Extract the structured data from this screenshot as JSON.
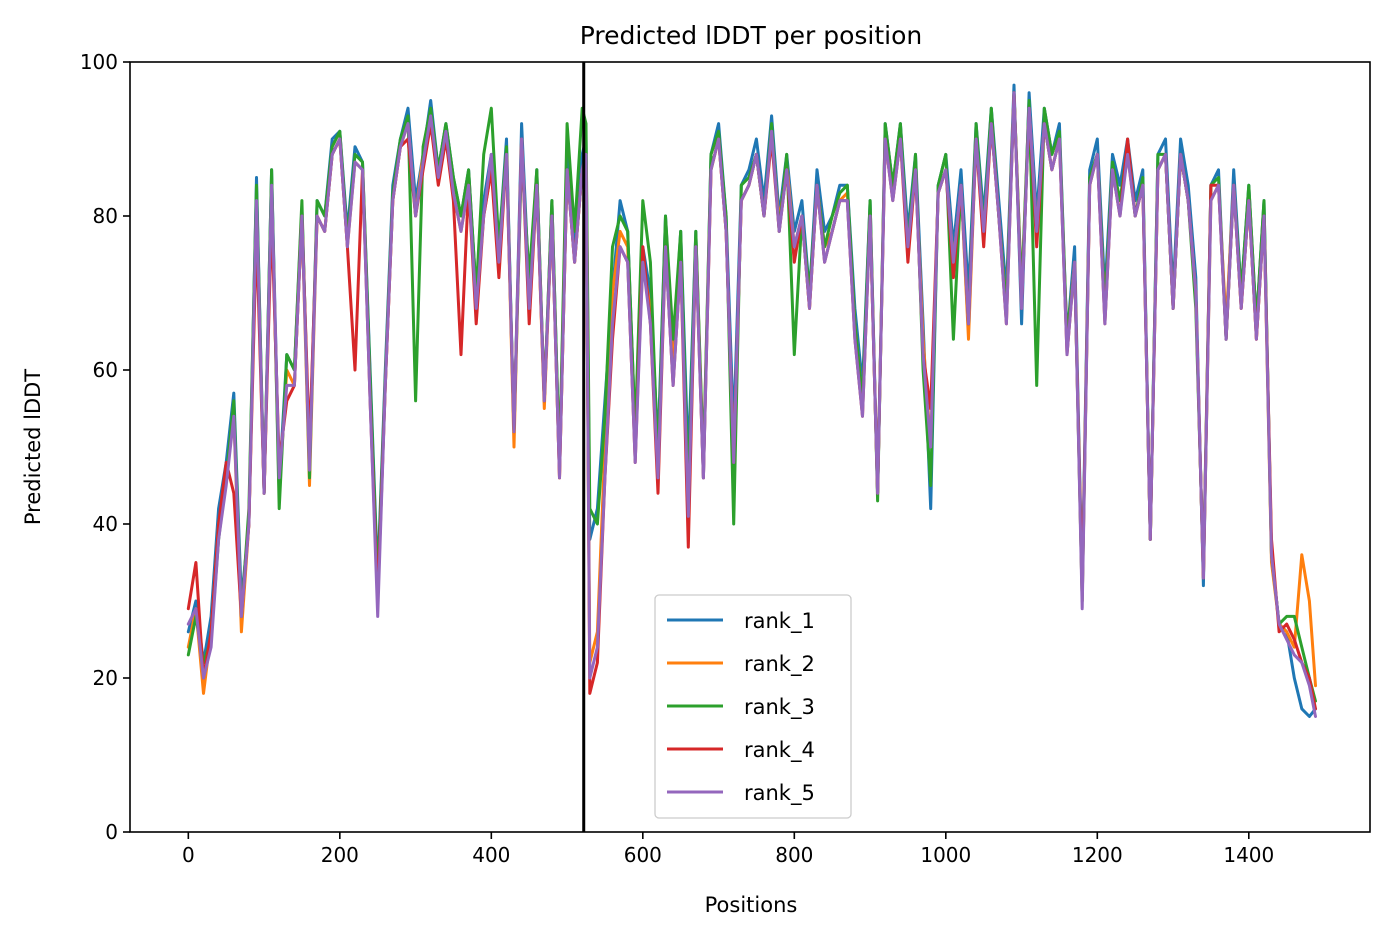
{
  "chart_data": {
    "type": "line",
    "title": "Predicted lDDT per position",
    "xlabel": "Positions",
    "ylabel": "Predicted lDDT",
    "xlim": [
      -77,
      1560
    ],
    "ylim": [
      0,
      100
    ],
    "xticks": [
      0,
      200,
      400,
      600,
      800,
      1000,
      1200,
      1400
    ],
    "yticks": [
      0,
      20,
      40,
      60,
      80,
      100
    ],
    "grid": false,
    "legend_position": "lower center",
    "vline_x": 522,
    "colors": [
      "#1f77b4",
      "#ff7f0e",
      "#2ca02c",
      "#d62728",
      "#9467bd"
    ],
    "x": [
      0,
      10,
      20,
      30,
      40,
      50,
      60,
      70,
      80,
      90,
      100,
      110,
      120,
      130,
      140,
      150,
      160,
      170,
      180,
      190,
      200,
      210,
      220,
      230,
      240,
      250,
      260,
      270,
      280,
      290,
      300,
      310,
      320,
      330,
      340,
      350,
      360,
      370,
      380,
      390,
      400,
      410,
      420,
      430,
      440,
      450,
      460,
      470,
      480,
      490,
      500,
      510,
      520,
      525,
      530,
      540,
      550,
      560,
      570,
      580,
      590,
      600,
      610,
      620,
      630,
      640,
      650,
      660,
      670,
      680,
      690,
      700,
      710,
      720,
      730,
      740,
      750,
      760,
      770,
      780,
      790,
      800,
      810,
      820,
      830,
      840,
      850,
      860,
      870,
      880,
      890,
      900,
      910,
      920,
      930,
      940,
      950,
      960,
      970,
      980,
      990,
      1000,
      1010,
      1020,
      1030,
      1040,
      1050,
      1060,
      1070,
      1080,
      1090,
      1100,
      1110,
      1120,
      1130,
      1140,
      1150,
      1160,
      1170,
      1180,
      1190,
      1200,
      1210,
      1220,
      1230,
      1240,
      1250,
      1260,
      1270,
      1280,
      1290,
      1300,
      1310,
      1320,
      1330,
      1340,
      1350,
      1360,
      1370,
      1380,
      1390,
      1400,
      1410,
      1420,
      1430,
      1440,
      1450,
      1460,
      1470,
      1480,
      1488
    ],
    "series": [
      {
        "name": "rank_1",
        "values": [
          26,
          30,
          22,
          28,
          42,
          48,
          57,
          30,
          40,
          85,
          44,
          86,
          45,
          62,
          60,
          81,
          48,
          82,
          80,
          90,
          91,
          78,
          89,
          87,
          60,
          33,
          60,
          84,
          90,
          94,
          82,
          88,
          95,
          86,
          92,
          85,
          80,
          86,
          70,
          82,
          88,
          76,
          90,
          52,
          92,
          70,
          86,
          56,
          82,
          48,
          88,
          76,
          88,
          90,
          38,
          42,
          56,
          70,
          82,
          78,
          52,
          76,
          70,
          50,
          80,
          62,
          78,
          48,
          78,
          46,
          88,
          92,
          80,
          52,
          84,
          86,
          90,
          82,
          93,
          80,
          88,
          78,
          82,
          70,
          86,
          78,
          80,
          84,
          84,
          68,
          58,
          82,
          44,
          92,
          84,
          92,
          78,
          88,
          66,
          42,
          84,
          88,
          76,
          86,
          70,
          92,
          80,
          94,
          82,
          70,
          97,
          66,
          96,
          80,
          94,
          88,
          92,
          64,
          76,
          32,
          86,
          90,
          70,
          88,
          84,
          90,
          82,
          86,
          38,
          88,
          90,
          70,
          90,
          84,
          72,
          32,
          84,
          86,
          64,
          86,
          70,
          84,
          66,
          82,
          36,
          27,
          26,
          20,
          16,
          15,
          16
        ]
      },
      {
        "name": "rank_2",
        "values": [
          24,
          29,
          18,
          26,
          40,
          46,
          54,
          26,
          40,
          82,
          44,
          84,
          44,
          60,
          58,
          80,
          45,
          80,
          78,
          88,
          90,
          76,
          87,
          86,
          58,
          30,
          58,
          82,
          89,
          92,
          80,
          88,
          93,
          85,
          90,
          83,
          78,
          84,
          68,
          80,
          86,
          74,
          88,
          50,
          90,
          68,
          84,
          55,
          80,
          46,
          86,
          74,
          86,
          88,
          22,
          26,
          50,
          70,
          78,
          76,
          50,
          74,
          68,
          48,
          78,
          60,
          76,
          40,
          77,
          48,
          86,
          90,
          78,
          48,
          82,
          84,
          88,
          80,
          91,
          79,
          87,
          76,
          80,
          68,
          84,
          76,
          78,
          82,
          83,
          66,
          56,
          80,
          44,
          91,
          83,
          90,
          76,
          86,
          64,
          50,
          83,
          86,
          74,
          84,
          64,
          90,
          78,
          92,
          80,
          68,
          96,
          70,
          94,
          78,
          92,
          86,
          90,
          64,
          74,
          30,
          84,
          88,
          68,
          86,
          82,
          88,
          80,
          84,
          38,
          86,
          88,
          68,
          88,
          82,
          70,
          33,
          82,
          84,
          66,
          84,
          68,
          82,
          64,
          80,
          35,
          27,
          26,
          24,
          36,
          30,
          19
        ]
      },
      {
        "name": "rank_3",
        "values": [
          23,
          28,
          22,
          25,
          38,
          46,
          56,
          28,
          42,
          84,
          44,
          86,
          42,
          62,
          60,
          82,
          46,
          82,
          80,
          89,
          91,
          77,
          88,
          87,
          59,
          32,
          59,
          83,
          90,
          93,
          56,
          89,
          94,
          86,
          92,
          85,
          80,
          86,
          70,
          88,
          94,
          76,
          89,
          52,
          88,
          72,
          86,
          56,
          82,
          48,
          92,
          78,
          94,
          92,
          42,
          40,
          54,
          76,
          80,
          78,
          52,
          82,
          74,
          48,
          80,
          64,
          78,
          44,
          78,
          48,
          88,
          91,
          80,
          40,
          84,
          85,
          88,
          80,
          92,
          78,
          88,
          62,
          80,
          70,
          84,
          76,
          80,
          83,
          84,
          66,
          56,
          82,
          43,
          92,
          84,
          92,
          76,
          88,
          60,
          45,
          84,
          88,
          64,
          84,
          66,
          92,
          78,
          94,
          80,
          68,
          96,
          70,
          95,
          58,
          94,
          88,
          91,
          64,
          74,
          30,
          85,
          88,
          68,
          87,
          82,
          89,
          80,
          85,
          38,
          88,
          88,
          68,
          88,
          82,
          68,
          34,
          84,
          85,
          64,
          84,
          70,
          84,
          66,
          82,
          36,
          27,
          28,
          28,
          24,
          20,
          17
        ]
      },
      {
        "name": "rank_4",
        "values": [
          29,
          35,
          20,
          26,
          40,
          48,
          44,
          28,
          40,
          78,
          44,
          80,
          48,
          56,
          58,
          80,
          50,
          80,
          78,
          88,
          90,
          76,
          60,
          86,
          56,
          30,
          58,
          82,
          89,
          90,
          80,
          86,
          92,
          84,
          90,
          82,
          62,
          84,
          66,
          80,
          86,
          72,
          88,
          52,
          90,
          66,
          84,
          56,
          80,
          46,
          86,
          74,
          86,
          88,
          18,
          22,
          46,
          64,
          76,
          74,
          48,
          76,
          66,
          44,
          76,
          58,
          74,
          37,
          76,
          46,
          86,
          90,
          78,
          48,
          82,
          84,
          88,
          80,
          90,
          78,
          86,
          74,
          80,
          68,
          84,
          74,
          78,
          82,
          82,
          64,
          54,
          80,
          44,
          90,
          82,
          90,
          74,
          86,
          62,
          55,
          83,
          86,
          72,
          84,
          66,
          90,
          76,
          92,
          80,
          66,
          96,
          68,
          94,
          76,
          92,
          86,
          90,
          62,
          74,
          31,
          84,
          88,
          66,
          86,
          80,
          90,
          80,
          84,
          38,
          86,
          88,
          68,
          88,
          82,
          70,
          33,
          84,
          84,
          64,
          84,
          68,
          82,
          64,
          80,
          38,
          26,
          27,
          25,
          22,
          20,
          16
        ]
      },
      {
        "name": "rank_5",
        "values": [
          27,
          29,
          20,
          24,
          38,
          45,
          54,
          28,
          40,
          82,
          44,
          84,
          46,
          58,
          58,
          80,
          47,
          80,
          78,
          88,
          90,
          76,
          87,
          86,
          56,
          28,
          58,
          82,
          89,
          92,
          80,
          87,
          93,
          85,
          91,
          83,
          78,
          84,
          68,
          80,
          88,
          74,
          88,
          52,
          90,
          68,
          84,
          56,
          80,
          46,
          86,
          74,
          86,
          88,
          20,
          24,
          46,
          66,
          76,
          74,
          48,
          74,
          66,
          46,
          76,
          58,
          74,
          41,
          76,
          46,
          86,
          90,
          78,
          48,
          82,
          84,
          88,
          80,
          91,
          78,
          86,
          76,
          80,
          68,
          84,
          74,
          78,
          82,
          82,
          64,
          54,
          80,
          44,
          90,
          82,
          90,
          76,
          86,
          62,
          50,
          83,
          86,
          74,
          84,
          66,
          90,
          78,
          92,
          80,
          66,
          96,
          68,
          94,
          78,
          92,
          86,
          90,
          62,
          74,
          29,
          84,
          88,
          66,
          86,
          80,
          88,
          80,
          84,
          38,
          86,
          88,
          68,
          88,
          82,
          70,
          33,
          82,
          84,
          64,
          84,
          68,
          82,
          64,
          80,
          36,
          27,
          25,
          23,
          22,
          19,
          15
        ]
      }
    ]
  }
}
